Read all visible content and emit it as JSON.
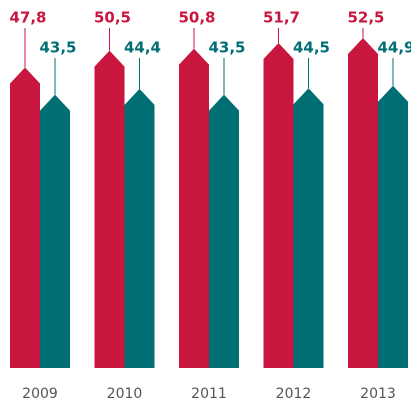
{
  "chart_data": {
    "type": "bar",
    "categories": [
      "2009",
      "2010",
      "2011",
      "2012",
      "2013"
    ],
    "series": [
      {
        "color": "#c8163f",
        "values": [
          47.8,
          50.5,
          50.8,
          51.7,
          52.5
        ],
        "value_labels": [
          "47,8",
          "50,5",
          "50,8",
          "51,7",
          "52,5"
        ]
      },
      {
        "color": "#006f74",
        "values": [
          43.5,
          44.4,
          43.5,
          44.5,
          44.9
        ],
        "value_labels": [
          "43,5",
          "44,4",
          "43,5",
          "44,5",
          "44,9"
        ]
      }
    ]
  }
}
